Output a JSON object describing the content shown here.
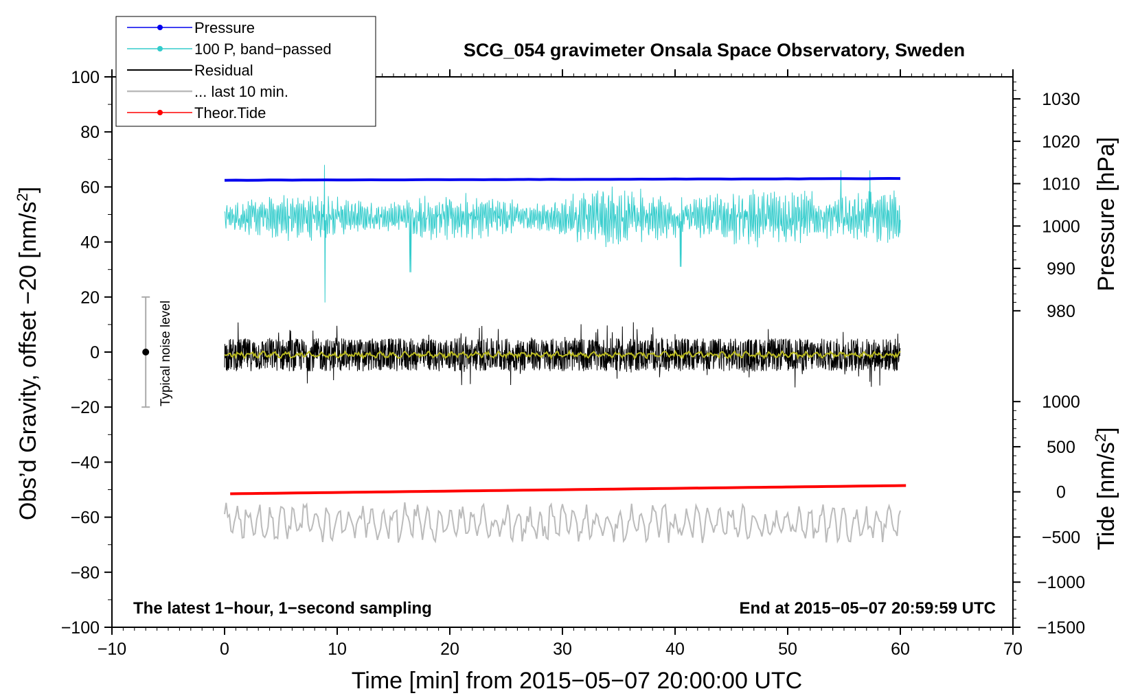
{
  "chart_data": {
    "type": "line",
    "title": "SCG_054 gravimeter Onsala Space Observatory, Sweden",
    "xlabel": "Time [min] from 2015−05−07 20:00:00 UTC",
    "ylabel_left": "Obs’d Gravity, offset −20 [nm/s",
    "ylabel_left_sup": "2",
    "ylabel_left_end": "]",
    "ylabel_right_pressure": "Pressure [hPa]",
    "ylabel_right_tide": "Tide [nm/s",
    "ylabel_right_tide_sup": "2",
    "ylabel_right_tide_end": "]",
    "xlim": [
      -10,
      70
    ],
    "ylim": [
      -100,
      100
    ],
    "xticks": [
      -10,
      0,
      10,
      20,
      30,
      40,
      50,
      60,
      70
    ],
    "xtick_labels": [
      "−10",
      "0",
      "10",
      "20",
      "30",
      "40",
      "50",
      "60",
      "70"
    ],
    "yticks": [
      100,
      80,
      60,
      40,
      20,
      0,
      -20,
      -40,
      -60,
      -80,
      -100
    ],
    "ytick_labels": [
      "100",
      "80",
      "60",
      "40",
      "20",
      "0",
      "−20",
      "−40",
      "−60",
      "−80",
      "−100"
    ],
    "pressure_ticks": [
      1030,
      1020,
      1010,
      1000,
      990,
      980
    ],
    "pressure_tick_labels": [
      "1030",
      "1020",
      "1010",
      "1000",
      "990",
      "980"
    ],
    "pressure_gravity_map": {
      "pressure": [
        980,
        1030
      ],
      "gravity": [
        15,
        92
      ]
    },
    "tide_ticks": [
      1000,
      500,
      0,
      -500,
      -1000,
      -1500
    ],
    "tide_tick_labels": [
      "1000",
      "500",
      "0",
      "−500",
      "−1000",
      "−1500"
    ],
    "tide_gravity_map": {
      "tide": [
        -1500,
        1000
      ],
      "gravity": [
        -100,
        -18
      ]
    },
    "series": [
      {
        "name": "Pressure",
        "color": "#0000ee",
        "legend": "Pressure",
        "start": 1010.8,
        "end": 1011.2,
        "x_range": [
          0,
          60
        ]
      },
      {
        "name": "100 P, band-passed",
        "color": "#33cccc",
        "legend": "100 P, band−passed",
        "center": 49,
        "amplitude": 5,
        "spikes": [
          {
            "x": 8.9,
            "low": 18,
            "high": 68
          },
          {
            "x": 16.5,
            "low": 29
          },
          {
            "x": 40.5,
            "low": 31
          },
          {
            "x": 54.7,
            "high": 66
          },
          {
            "x": 57.3,
            "high": 66
          }
        ],
        "x_range": [
          0,
          60
        ]
      },
      {
        "name": "Residual",
        "color": "#000000",
        "legend": "Residual",
        "center": -1,
        "amplitude": 6,
        "x_range": [
          0,
          60
        ]
      },
      {
        "name": "Residual smoothed",
        "color": "#bbbb22",
        "center": -1,
        "amplitude": 1.2,
        "x_range": [
          0,
          60
        ]
      },
      {
        "name": "... last 10 min.",
        "color": "#bbbbbb",
        "legend": "... last 10 min.",
        "center": -62,
        "amplitude": 6,
        "x_range": [
          0,
          60
        ]
      },
      {
        "name": "Theor.Tide",
        "color": "#ff0000",
        "legend": "Theor.Tide",
        "start": -51.5,
        "end": -48.5,
        "x_range": [
          0.5,
          60.5
        ]
      }
    ],
    "legend_position": "top-left",
    "noise_bar": {
      "label": "Typical noise level",
      "x": -7,
      "center": 0,
      "low": -20,
      "high": 20
    },
    "annotations": {
      "bottom_left": "The latest 1−hour, 1−second sampling",
      "bottom_right": "End at 2015−05−07 20:59:59 UTC"
    },
    "grid": false
  }
}
